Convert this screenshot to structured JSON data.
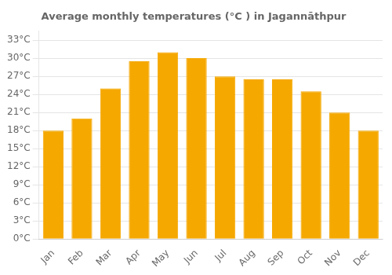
{
  "chart_data": {
    "type": "bar",
    "title": "Average monthly temperatures (°C ) in Jagannāthpur",
    "categories": [
      "Jan",
      "Feb",
      "Mar",
      "Apr",
      "May",
      "Jun",
      "Jul",
      "Aug",
      "Sep",
      "Oct",
      "Nov",
      "Dec"
    ],
    "values": [
      18,
      20,
      25,
      29.5,
      31,
      30,
      27,
      26.5,
      26.5,
      24.5,
      21,
      18
    ],
    "color": "#F5A800",
    "ylim": [
      0,
      34.5
    ],
    "yticks": [
      {
        "value": 0,
        "label": "0°C"
      },
      {
        "value": 3,
        "label": "3°C"
      },
      {
        "value": 6,
        "label": "6°C"
      },
      {
        "value": 9,
        "label": "9°C"
      },
      {
        "value": 12,
        "label": "12°C"
      },
      {
        "value": 15,
        "label": "15°C"
      },
      {
        "value": 18,
        "label": "18°C"
      },
      {
        "value": 21,
        "label": "21°C"
      },
      {
        "value": 24,
        "label": "24°C"
      },
      {
        "value": 27,
        "label": "27°C"
      },
      {
        "value": 30,
        "label": "30°C"
      },
      {
        "value": 33,
        "label": "33°C"
      }
    ],
    "grid": true
  }
}
